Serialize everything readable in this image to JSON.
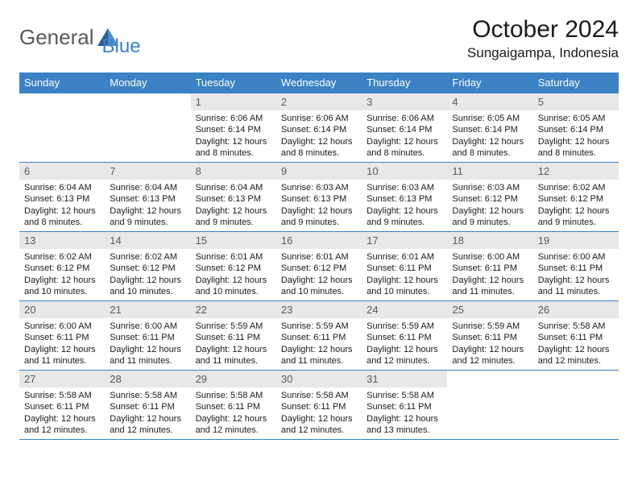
{
  "logo": {
    "text1": "General",
    "text2": "Blue"
  },
  "title": "October 2024",
  "location": "Sungaigampa, Indonesia",
  "colors": {
    "header_bg": "#3a82c4",
    "header_text": "#ffffff",
    "daynum_bg": "#e8e8e8",
    "daynum_text": "#5a5a5a",
    "border": "#3a82c4",
    "body_text": "#1a1a1a",
    "logo_gray": "#5a5a5a",
    "logo_blue": "#3a82c4"
  },
  "weekdays": [
    "Sunday",
    "Monday",
    "Tuesday",
    "Wednesday",
    "Thursday",
    "Friday",
    "Saturday"
  ],
  "weeks": [
    [
      null,
      null,
      {
        "n": "1",
        "sr": "6:06 AM",
        "ss": "6:14 PM",
        "dl": "12 hours and 8 minutes."
      },
      {
        "n": "2",
        "sr": "6:06 AM",
        "ss": "6:14 PM",
        "dl": "12 hours and 8 minutes."
      },
      {
        "n": "3",
        "sr": "6:06 AM",
        "ss": "6:14 PM",
        "dl": "12 hours and 8 minutes."
      },
      {
        "n": "4",
        "sr": "6:05 AM",
        "ss": "6:14 PM",
        "dl": "12 hours and 8 minutes."
      },
      {
        "n": "5",
        "sr": "6:05 AM",
        "ss": "6:14 PM",
        "dl": "12 hours and 8 minutes."
      }
    ],
    [
      {
        "n": "6",
        "sr": "6:04 AM",
        "ss": "6:13 PM",
        "dl": "12 hours and 8 minutes."
      },
      {
        "n": "7",
        "sr": "6:04 AM",
        "ss": "6:13 PM",
        "dl": "12 hours and 9 minutes."
      },
      {
        "n": "8",
        "sr": "6:04 AM",
        "ss": "6:13 PM",
        "dl": "12 hours and 9 minutes."
      },
      {
        "n": "9",
        "sr": "6:03 AM",
        "ss": "6:13 PM",
        "dl": "12 hours and 9 minutes."
      },
      {
        "n": "10",
        "sr": "6:03 AM",
        "ss": "6:13 PM",
        "dl": "12 hours and 9 minutes."
      },
      {
        "n": "11",
        "sr": "6:03 AM",
        "ss": "6:12 PM",
        "dl": "12 hours and 9 minutes."
      },
      {
        "n": "12",
        "sr": "6:02 AM",
        "ss": "6:12 PM",
        "dl": "12 hours and 9 minutes."
      }
    ],
    [
      {
        "n": "13",
        "sr": "6:02 AM",
        "ss": "6:12 PM",
        "dl": "12 hours and 10 minutes."
      },
      {
        "n": "14",
        "sr": "6:02 AM",
        "ss": "6:12 PM",
        "dl": "12 hours and 10 minutes."
      },
      {
        "n": "15",
        "sr": "6:01 AM",
        "ss": "6:12 PM",
        "dl": "12 hours and 10 minutes."
      },
      {
        "n": "16",
        "sr": "6:01 AM",
        "ss": "6:12 PM",
        "dl": "12 hours and 10 minutes."
      },
      {
        "n": "17",
        "sr": "6:01 AM",
        "ss": "6:11 PM",
        "dl": "12 hours and 10 minutes."
      },
      {
        "n": "18",
        "sr": "6:00 AM",
        "ss": "6:11 PM",
        "dl": "12 hours and 11 minutes."
      },
      {
        "n": "19",
        "sr": "6:00 AM",
        "ss": "6:11 PM",
        "dl": "12 hours and 11 minutes."
      }
    ],
    [
      {
        "n": "20",
        "sr": "6:00 AM",
        "ss": "6:11 PM",
        "dl": "12 hours and 11 minutes."
      },
      {
        "n": "21",
        "sr": "6:00 AM",
        "ss": "6:11 PM",
        "dl": "12 hours and 11 minutes."
      },
      {
        "n": "22",
        "sr": "5:59 AM",
        "ss": "6:11 PM",
        "dl": "12 hours and 11 minutes."
      },
      {
        "n": "23",
        "sr": "5:59 AM",
        "ss": "6:11 PM",
        "dl": "12 hours and 11 minutes."
      },
      {
        "n": "24",
        "sr": "5:59 AM",
        "ss": "6:11 PM",
        "dl": "12 hours and 12 minutes."
      },
      {
        "n": "25",
        "sr": "5:59 AM",
        "ss": "6:11 PM",
        "dl": "12 hours and 12 minutes."
      },
      {
        "n": "26",
        "sr": "5:58 AM",
        "ss": "6:11 PM",
        "dl": "12 hours and 12 minutes."
      }
    ],
    [
      {
        "n": "27",
        "sr": "5:58 AM",
        "ss": "6:11 PM",
        "dl": "12 hours and 12 minutes."
      },
      {
        "n": "28",
        "sr": "5:58 AM",
        "ss": "6:11 PM",
        "dl": "12 hours and 12 minutes."
      },
      {
        "n": "29",
        "sr": "5:58 AM",
        "ss": "6:11 PM",
        "dl": "12 hours and 12 minutes."
      },
      {
        "n": "30",
        "sr": "5:58 AM",
        "ss": "6:11 PM",
        "dl": "12 hours and 12 minutes."
      },
      {
        "n": "31",
        "sr": "5:58 AM",
        "ss": "6:11 PM",
        "dl": "12 hours and 13 minutes."
      },
      null,
      null
    ]
  ],
  "labels": {
    "sunrise": "Sunrise:",
    "sunset": "Sunset:",
    "daylight": "Daylight:"
  }
}
